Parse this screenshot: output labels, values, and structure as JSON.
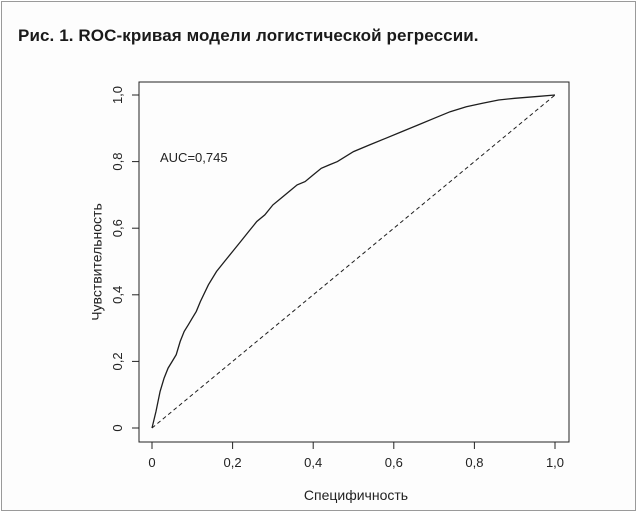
{
  "figure": {
    "caption": "Рис. 1. ROC-кривая модели логистической регрессии."
  },
  "chart_data": {
    "type": "line",
    "xlabel": "Специфичность",
    "ylabel": "Чувствительность",
    "xlim": [
      0,
      1
    ],
    "ylim": [
      0,
      1
    ],
    "x_ticks": [
      "0",
      "0,2",
      "0,4",
      "0,6",
      "0,8",
      "1,0"
    ],
    "y_ticks": [
      "0",
      "0,2",
      "0,4",
      "0,6",
      "0,8",
      "1,0"
    ],
    "annotation": "AUC=0,745",
    "grid": false,
    "series": [
      {
        "style": "solid",
        "points": [
          [
            0,
            0
          ],
          [
            0.01,
            0.05
          ],
          [
            0.02,
            0.11
          ],
          [
            0.03,
            0.15
          ],
          [
            0.04,
            0.18
          ],
          [
            0.05,
            0.2
          ],
          [
            0.06,
            0.22
          ],
          [
            0.07,
            0.26
          ],
          [
            0.08,
            0.29
          ],
          [
            0.09,
            0.31
          ],
          [
            0.1,
            0.33
          ],
          [
            0.11,
            0.35
          ],
          [
            0.12,
            0.38
          ],
          [
            0.14,
            0.43
          ],
          [
            0.16,
            0.47
          ],
          [
            0.18,
            0.5
          ],
          [
            0.2,
            0.53
          ],
          [
            0.22,
            0.56
          ],
          [
            0.24,
            0.59
          ],
          [
            0.26,
            0.62
          ],
          [
            0.28,
            0.64
          ],
          [
            0.3,
            0.67
          ],
          [
            0.32,
            0.69
          ],
          [
            0.34,
            0.71
          ],
          [
            0.36,
            0.73
          ],
          [
            0.38,
            0.74
          ],
          [
            0.4,
            0.76
          ],
          [
            0.42,
            0.78
          ],
          [
            0.44,
            0.79
          ],
          [
            0.46,
            0.8
          ],
          [
            0.5,
            0.83
          ],
          [
            0.54,
            0.85
          ],
          [
            0.58,
            0.87
          ],
          [
            0.62,
            0.89
          ],
          [
            0.66,
            0.91
          ],
          [
            0.7,
            0.93
          ],
          [
            0.74,
            0.95
          ],
          [
            0.78,
            0.965
          ],
          [
            0.82,
            0.975
          ],
          [
            0.86,
            0.985
          ],
          [
            0.9,
            0.99
          ],
          [
            0.95,
            0.995
          ],
          [
            1,
            1
          ]
        ]
      },
      {
        "style": "dashed",
        "points": [
          [
            0,
            0
          ],
          [
            1,
            1
          ]
        ]
      }
    ]
  }
}
